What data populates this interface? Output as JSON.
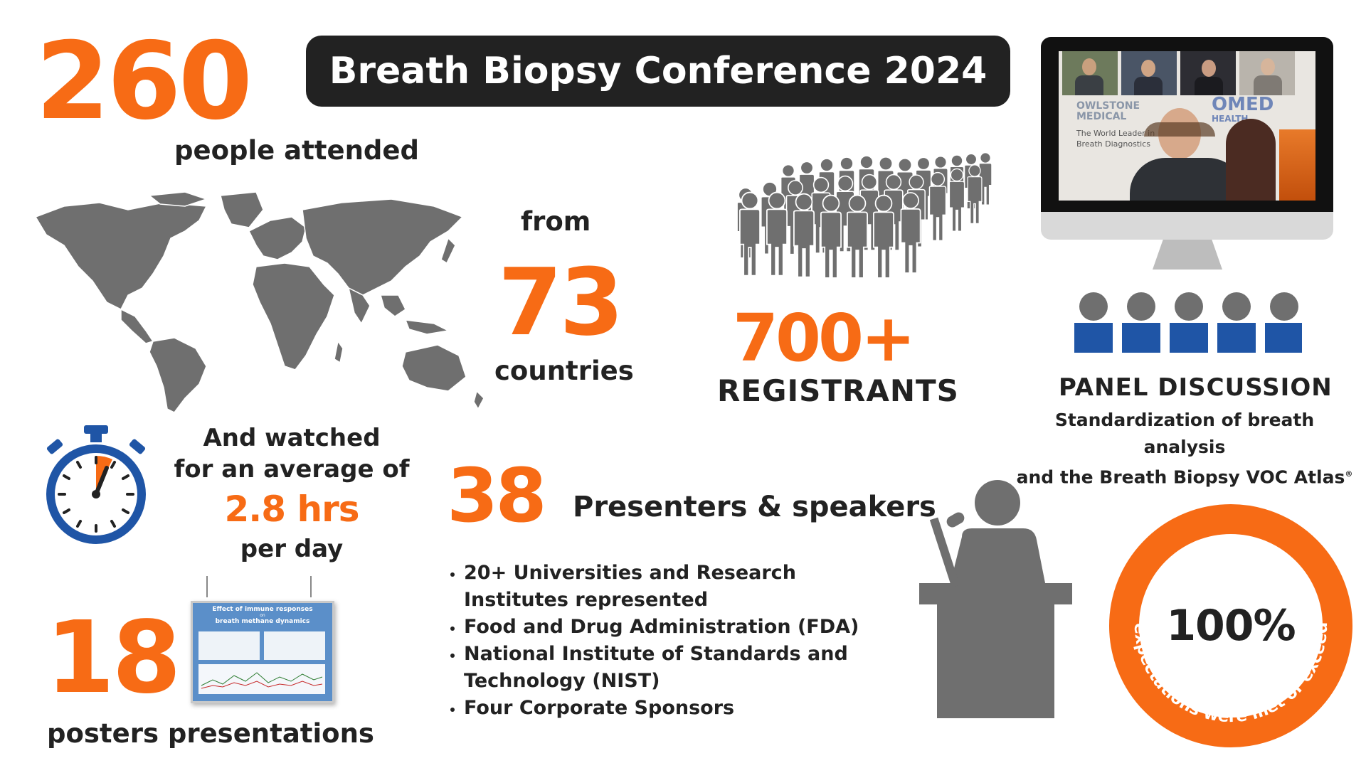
{
  "title": "Breath Biopsy Conference 2024",
  "attendance": {
    "value": "260",
    "label": "people attended"
  },
  "countries": {
    "prefix": "from",
    "value": "73",
    "label": "countries"
  },
  "registrants": {
    "value": "700+",
    "label": "REGISTRANTS"
  },
  "panel": {
    "heading": "PANEL DISCUSSION",
    "subtitle_line1": "Standardization of breath analysis",
    "subtitle_line2": "and the Breath Biopsy VOC Atlas",
    "trademark": "®"
  },
  "watch_time": {
    "line1": "And watched",
    "line2": "for an average of",
    "value": "2.8 hrs",
    "line3": "per day"
  },
  "presenters": {
    "value": "38",
    "label": "Presenters & speakers",
    "bullets": [
      "20+ Universities and Research Institutes represented",
      "Food and Drug Administration (FDA)",
      "National Institute of Standards and Technology (NIST)",
      "Four Corporate Sponsors"
    ]
  },
  "posters": {
    "value": "18",
    "label": "posters presentations",
    "poster_title": "Effect of immune responses",
    "poster_subtitle": "on",
    "poster_title2": "breath methane dynamics"
  },
  "expectations": {
    "value": "100%",
    "arc_text": "of expectations were met or exceeded"
  },
  "video": {
    "sign_line1": "OWLSTONE",
    "sign_line2": "MEDICAL",
    "sign_line3": "The World Leader in",
    "sign_line4": "Breath Diagnostics",
    "sign2_line1": "OMED",
    "sign2_line2": "HEALTH"
  },
  "colors": {
    "accent": "#F76B15",
    "dark": "#222222",
    "gray": "#6b6b6b",
    "blue": "#1F55A6"
  }
}
